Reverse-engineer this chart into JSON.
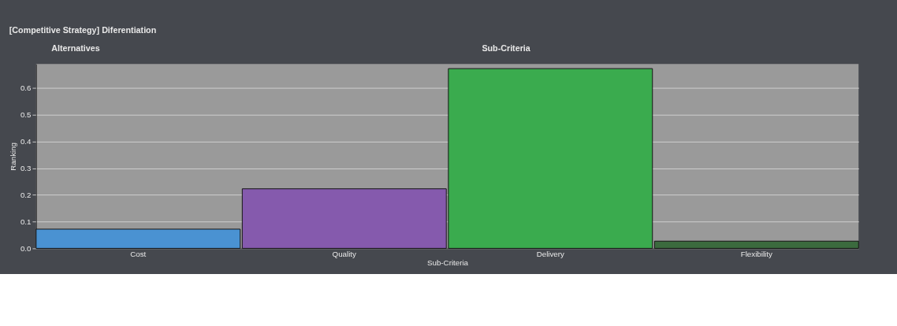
{
  "chart_data": {
    "type": "bar",
    "title": "[Competitive Strategy] Diferentiation",
    "annotations": [
      "Alternatives",
      "Sub-Criteria"
    ],
    "xlabel": "Sub-Criteria",
    "ylabel": "Ranking",
    "categories": [
      "Cost",
      "Quality",
      "Delivery",
      "Flexibility"
    ],
    "values": [
      0.072,
      0.223,
      0.673,
      0.027
    ],
    "colors": [
      "#4a92d2",
      "#855aad",
      "#3aab4e",
      "#3b6a3e"
    ],
    "ylim": [
      0,
      0.69
    ],
    "yticks": [
      {
        "value": 0,
        "label": "0.0"
      },
      0.1,
      0.2,
      0.3,
      0.4,
      0.5,
      0.6
    ],
    "grid": "y"
  }
}
